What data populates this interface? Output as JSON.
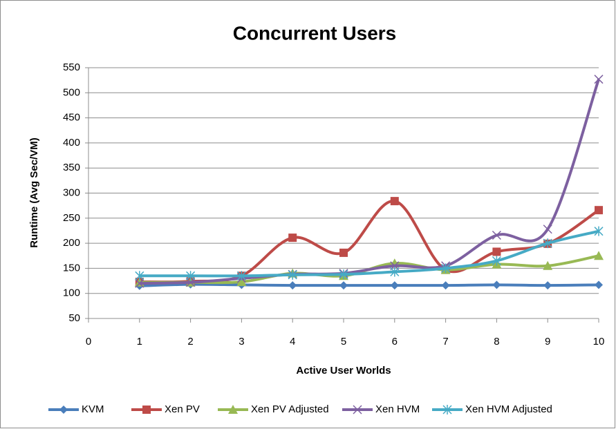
{
  "chart_data": {
    "type": "line",
    "title": "Concurrent Users",
    "x_label": "Active User Worlds",
    "y_label": "Runtime (Avg Sec/VM)",
    "x": [
      1,
      2,
      3,
      4,
      5,
      6,
      7,
      8,
      9,
      10
    ],
    "xlim": [
      0,
      10
    ],
    "xticks": [
      0,
      1,
      2,
      3,
      4,
      5,
      6,
      7,
      8,
      9,
      10
    ],
    "ylim": [
      50,
      550
    ],
    "yticks": [
      50,
      100,
      150,
      200,
      250,
      300,
      350,
      400,
      450,
      500,
      550
    ],
    "grid": true,
    "legend": "bottom",
    "smooth": true,
    "series": [
      {
        "name": "KVM",
        "color": "#4a7ebb",
        "marker": "diamond",
        "values": [
          115,
          118,
          117,
          116,
          116,
          116,
          116,
          117,
          116,
          117
        ]
      },
      {
        "name": "Xen PV",
        "color": "#be4b48",
        "marker": "square",
        "values": [
          123,
          124,
          135,
          211,
          181,
          284,
          147,
          183,
          199,
          266
        ]
      },
      {
        "name": "Xen PV Adjusted",
        "color": "#98b954",
        "marker": "triangle",
        "values": [
          122,
          122,
          123,
          140,
          135,
          160,
          147,
          158,
          155,
          175
        ]
      },
      {
        "name": "Xen HVM",
        "color": "#7d60a0",
        "marker": "x",
        "values": [
          120,
          122,
          130,
          138,
          140,
          155,
          155,
          216,
          228,
          527
        ]
      },
      {
        "name": "Xen HVM Adjusted",
        "color": "#46aac5",
        "marker": "star",
        "values": [
          135,
          135,
          135,
          137,
          138,
          143,
          150,
          165,
          200,
          224
        ]
      }
    ]
  }
}
